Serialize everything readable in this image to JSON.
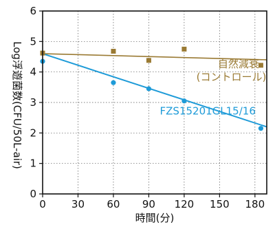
{
  "chart_data": {
    "type": "line",
    "xlabel": "時間(分)",
    "ylabel": "Log浮遊菌数(CFU/50L-air)",
    "xlim": [
      0,
      190
    ],
    "ylim": [
      0,
      6
    ],
    "xticks": [
      0,
      30,
      60,
      90,
      120,
      150,
      180
    ],
    "yticks": [
      0,
      1,
      2,
      3,
      4,
      5,
      6
    ],
    "grid": true,
    "series": [
      {
        "name": "自然減衰(コントロール)",
        "color": "#9a7a33",
        "marker": "square",
        "x": [
          0,
          60,
          90,
          120,
          185
        ],
        "y": [
          4.62,
          4.68,
          4.38,
          4.75,
          4.22
        ],
        "fit": [
          [
            0,
            4.6
          ],
          [
            190,
            4.4
          ]
        ]
      },
      {
        "name": "FZS15201GL15/16",
        "color": "#1e9bd8",
        "marker": "circle",
        "x": [
          0,
          60,
          90,
          120,
          185
        ],
        "y": [
          4.35,
          3.65,
          3.45,
          3.05,
          2.15
        ],
        "fit": [
          [
            0,
            4.6
          ],
          [
            190,
            2.2
          ]
        ]
      }
    ],
    "annotations": [
      {
        "text": "自然減衰",
        "x": 166,
        "y": 4.15,
        "color": "#9a7a33"
      },
      {
        "text": "(コントロール)",
        "x": 160,
        "y": 3.72,
        "color": "#9a7a33"
      },
      {
        "text": "FZS15201GL15/16",
        "x": 140,
        "y": 2.6,
        "color": "#1e9bd8"
      }
    ]
  }
}
